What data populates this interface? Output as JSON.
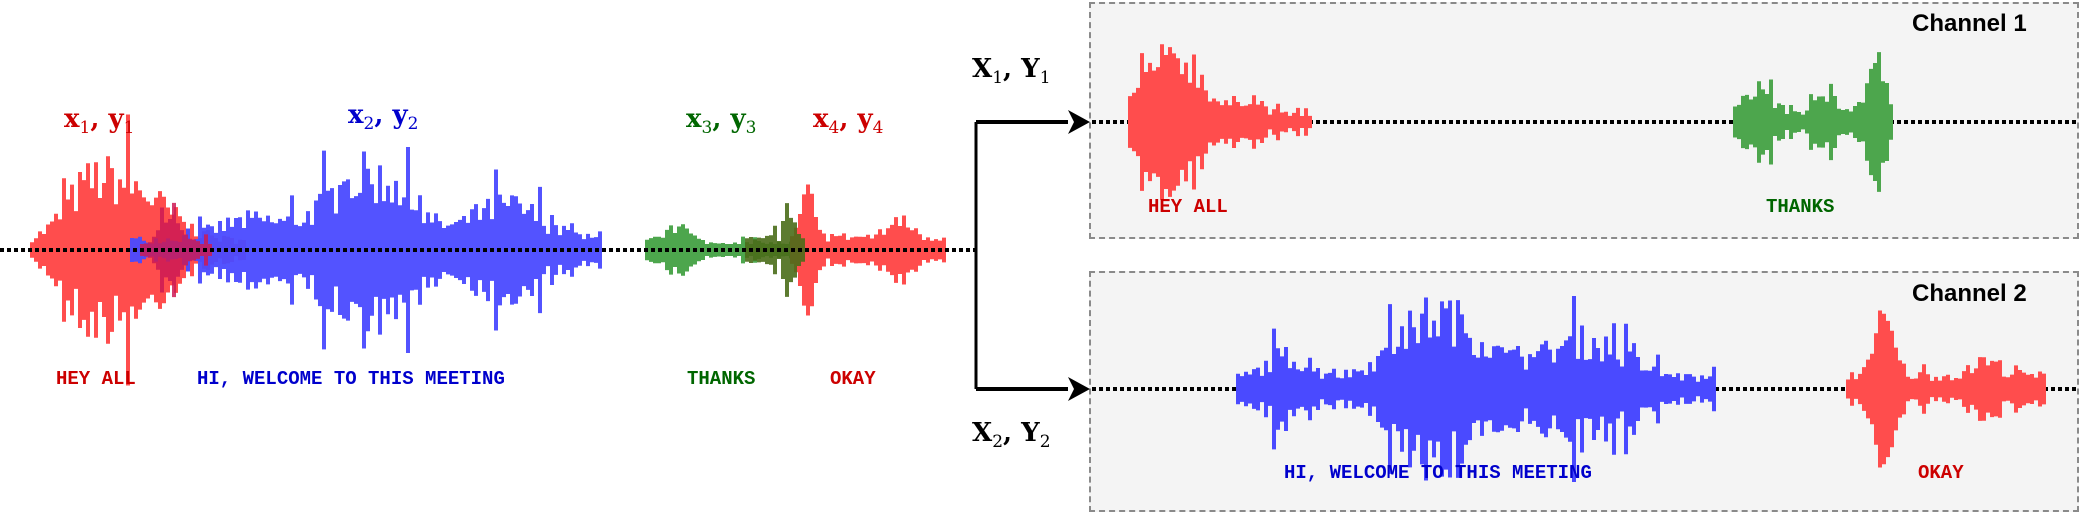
{
  "colors": {
    "red_wave": "#ff4d4d",
    "red_text": "#cc0000",
    "blue_wave": "#4a4aff",
    "blue_text": "#0000cc",
    "green_wave": "#4da64d",
    "green_text": "#006600",
    "panel_bg": "#f4f4f4"
  },
  "mixture": {
    "segments": [
      {
        "var": "x",
        "sub": "1",
        "var2": "y",
        "sub2": "1",
        "word": "HEY ALL",
        "color": "red"
      },
      {
        "var": "x",
        "sub": "2",
        "var2": "y",
        "sub2": "2",
        "word": "HI, WELCOME TO THIS MEETING",
        "color": "blue"
      },
      {
        "var": "x",
        "sub": "3",
        "var2": "y",
        "sub2": "3",
        "word": "THANKS",
        "color": "green"
      },
      {
        "var": "x",
        "sub": "4",
        "var2": "y",
        "sub2": "4",
        "word": "OKAY",
        "color": "red"
      }
    ]
  },
  "outputs": [
    {
      "var": "X",
      "sub": "1",
      "var2": "Y",
      "sub2": "1"
    },
    {
      "var": "X",
      "sub": "2",
      "var2": "Y",
      "sub2": "2"
    }
  ],
  "channels": [
    {
      "title": "Channel 1",
      "words": [
        "HEY ALL",
        "THANKS"
      ]
    },
    {
      "title": "Channel 2",
      "words": [
        "HI, WELCOME TO THIS MEETING",
        "OKAY"
      ]
    }
  ]
}
